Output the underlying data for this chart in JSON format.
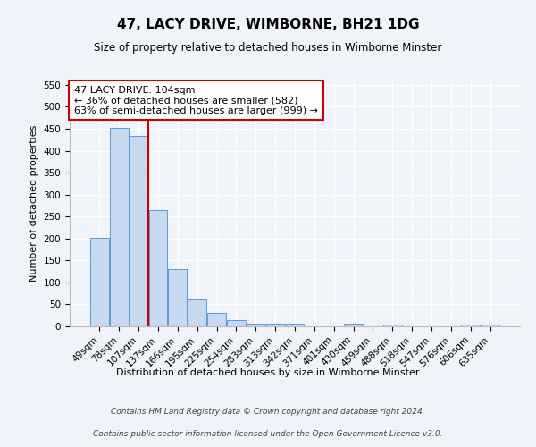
{
  "title": "47, LACY DRIVE, WIMBORNE, BH21 1DG",
  "subtitle": "Size of property relative to detached houses in Wimborne Minster",
  "xlabel": "Distribution of detached houses by size in Wimborne Minster",
  "ylabel": "Number of detached properties",
  "categories": [
    "49sqm",
    "78sqm",
    "107sqm",
    "137sqm",
    "166sqm",
    "195sqm",
    "225sqm",
    "254sqm",
    "283sqm",
    "313sqm",
    "342sqm",
    "371sqm",
    "401sqm",
    "430sqm",
    "459sqm",
    "488sqm",
    "518sqm",
    "547sqm",
    "576sqm",
    "606sqm",
    "635sqm"
  ],
  "values": [
    201,
    452,
    434,
    265,
    130,
    62,
    30,
    15,
    7,
    6,
    6,
    0,
    0,
    6,
    0,
    5,
    0,
    0,
    0,
    5,
    5
  ],
  "bar_color": "#c6d9f0",
  "bar_edge_color": "#5b9bd5",
  "vline_x_index": 2.5,
  "vline_color": "#cc0000",
  "annotation_text": "47 LACY DRIVE: 104sqm\n← 36% of detached houses are smaller (582)\n63% of semi-detached houses are larger (999) →",
  "annotation_box_color": "#ffffff",
  "annotation_box_edge": "#cc0000",
  "ylim": [
    0,
    560
  ],
  "yticks": [
    0,
    50,
    100,
    150,
    200,
    250,
    300,
    350,
    400,
    450,
    500,
    550
  ],
  "footer_line1": "Contains HM Land Registry data © Crown copyright and database right 2024.",
  "footer_line2": "Contains public sector information licensed under the Open Government Licence v3.0.",
  "bg_color": "#f0f4fa",
  "plot_bg_color": "#f0f4fa",
  "grid_color": "#ffffff",
  "title_fontsize": 11,
  "subtitle_fontsize": 8.5,
  "ylabel_fontsize": 8,
  "xlabel_fontsize": 8,
  "tick_fontsize": 7.5,
  "annotation_fontsize": 8,
  "footer_fontsize": 6.5
}
